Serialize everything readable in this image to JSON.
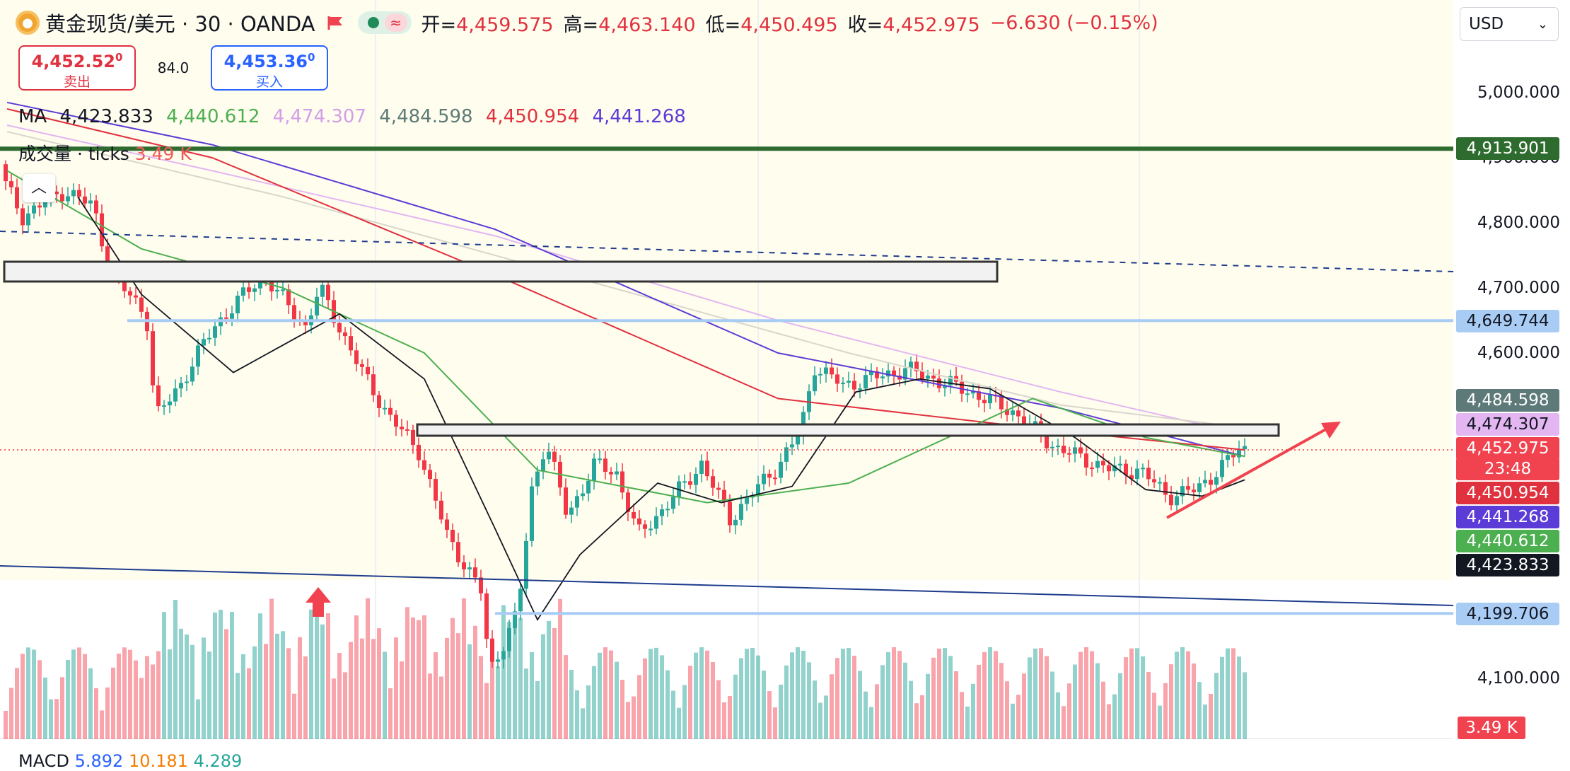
{
  "header": {
    "symbol_icon": "gold-coin-icon",
    "title": "黄金现货/美元 · 30 · OANDA",
    "flag_icon": "flag-icon",
    "market_status_icon": "market-open-dot-icon",
    "wave_icon": "wave-icon",
    "ohlc": [
      {
        "key": "开=",
        "value": "4,459.575"
      },
      {
        "key": "高=",
        "value": "4,463.140"
      },
      {
        "key": "低=",
        "value": "4,450.495"
      },
      {
        "key": "收=",
        "value": "4,452.975"
      }
    ],
    "change": "−6.630 (−0.15%)"
  },
  "trade": {
    "sell_price_main": "4,452.52",
    "sell_price_sup": "0",
    "sell_label": "卖出",
    "spread": "84.0",
    "buy_price_main": "4,453.36",
    "buy_price_sup": "0",
    "buy_label": "买入"
  },
  "ma_legend": {
    "label": "MA",
    "values": [
      {
        "value": "4,423.833",
        "color": "#131722"
      },
      {
        "value": "4,440.612",
        "color": "#4caf50"
      },
      {
        "value": "4,474.307",
        "color": "#d39ee8"
      },
      {
        "value": "4,484.598",
        "color": "#5d7a78"
      },
      {
        "value": "4,450.954",
        "color": "#e0313f"
      },
      {
        "value": "4,441.268",
        "color": "#5b3cd6"
      }
    ]
  },
  "volume_legend": {
    "label": "成交量 · ticks",
    "value": "3.49 K"
  },
  "collapse_icon": "chevron-up-icon",
  "currency": {
    "value": "USD",
    "icon": "chevron-down-icon"
  },
  "price_axis": {
    "ticks": [
      "5,000.000",
      "4,900.000",
      "4,800.000",
      "4,700.000",
      "4,600.000",
      "4,100.000"
    ],
    "badges": [
      {
        "label": "4,913.901",
        "bg": "#2e6b2e",
        "fg": "#ffffff"
      },
      {
        "label": "4,649.744",
        "bg": "#a9ccf5",
        "fg": "#131722"
      },
      {
        "label": "4,484.598",
        "bg": "#5d7a78",
        "fg": "#ffffff"
      },
      {
        "label": "4,474.307",
        "bg": "#e3b6f2",
        "fg": "#131722"
      },
      {
        "label": "4,452.975",
        "bg": "#f0424f",
        "fg": "#ffffff"
      },
      {
        "label": "23:48",
        "bg": "#f0424f",
        "fg": "#ffffff"
      },
      {
        "label": "4,450.954",
        "bg": "#e0313f",
        "fg": "#ffffff"
      },
      {
        "label": "4,441.268",
        "bg": "#5b3cd6",
        "fg": "#ffffff"
      },
      {
        "label": "4,440.612",
        "bg": "#4caf50",
        "fg": "#ffffff"
      },
      {
        "label": "4,423.833",
        "bg": "#131722",
        "fg": "#ffffff"
      },
      {
        "label": "4,199.706",
        "bg": "#a9ccf5",
        "fg": "#131722"
      },
      {
        "label": "3.49 K",
        "bg": "#f0424f",
        "fg": "#ffffff"
      }
    ]
  },
  "macd_legend": {
    "label": "MACD",
    "v1": "5.892",
    "v2": "10.181",
    "v3": "4.289"
  },
  "colors": {
    "up": "#26a69a",
    "down": "#f23645",
    "bg_zone": "#fffdee"
  }
}
